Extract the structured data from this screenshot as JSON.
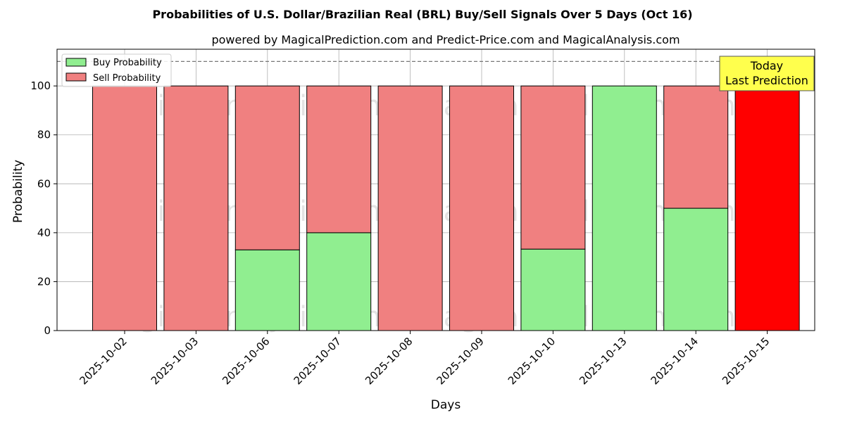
{
  "chart_data": {
    "type": "bar",
    "title": "Probabilities of U.S. Dollar/Brazilian Real (BRL) Buy/Sell Signals Over 5 Days (Oct 16)",
    "subtitle": "powered by MagicalPrediction.com and Predict-Price.com and MagicalAnalysis.com",
    "xlabel": "Days",
    "ylabel": "Probability",
    "ylim": [
      0,
      115
    ],
    "yticks": [
      0,
      20,
      40,
      60,
      80,
      100
    ],
    "categories": [
      "2025-10-02",
      "2025-10-03",
      "2025-10-06",
      "2025-10-07",
      "2025-10-08",
      "2025-10-09",
      "2025-10-10",
      "2025-10-13",
      "2025-10-14",
      "2025-10-15"
    ],
    "stacked": true,
    "series": [
      {
        "name": "Buy Probability",
        "color": "#90ee90",
        "values": [
          0,
          0,
          33,
          40,
          0,
          0,
          33.3,
          100,
          50,
          0
        ]
      },
      {
        "name": "Sell Probability",
        "color": "#f08080",
        "values": [
          100,
          100,
          67,
          60,
          100,
          100,
          66.7,
          0,
          50,
          100
        ]
      }
    ],
    "highlight": {
      "category": "2025-10-15",
      "color": "#ff0000"
    },
    "reference_line": {
      "y": 110,
      "style": "dashed"
    },
    "annotation": {
      "lines": [
        "Today",
        "Last Prediction"
      ],
      "background": "#ffff4d"
    },
    "legend": {
      "placement": "top-left"
    },
    "grid": true,
    "watermarks": [
      "MagicalAnalysis.com",
      "MagicalPrediction.com",
      "MagicalAnalysis.com",
      "MagicalPrediction.com",
      "MagicalAnalysis.com",
      "MagicalPrediction.com"
    ]
  }
}
